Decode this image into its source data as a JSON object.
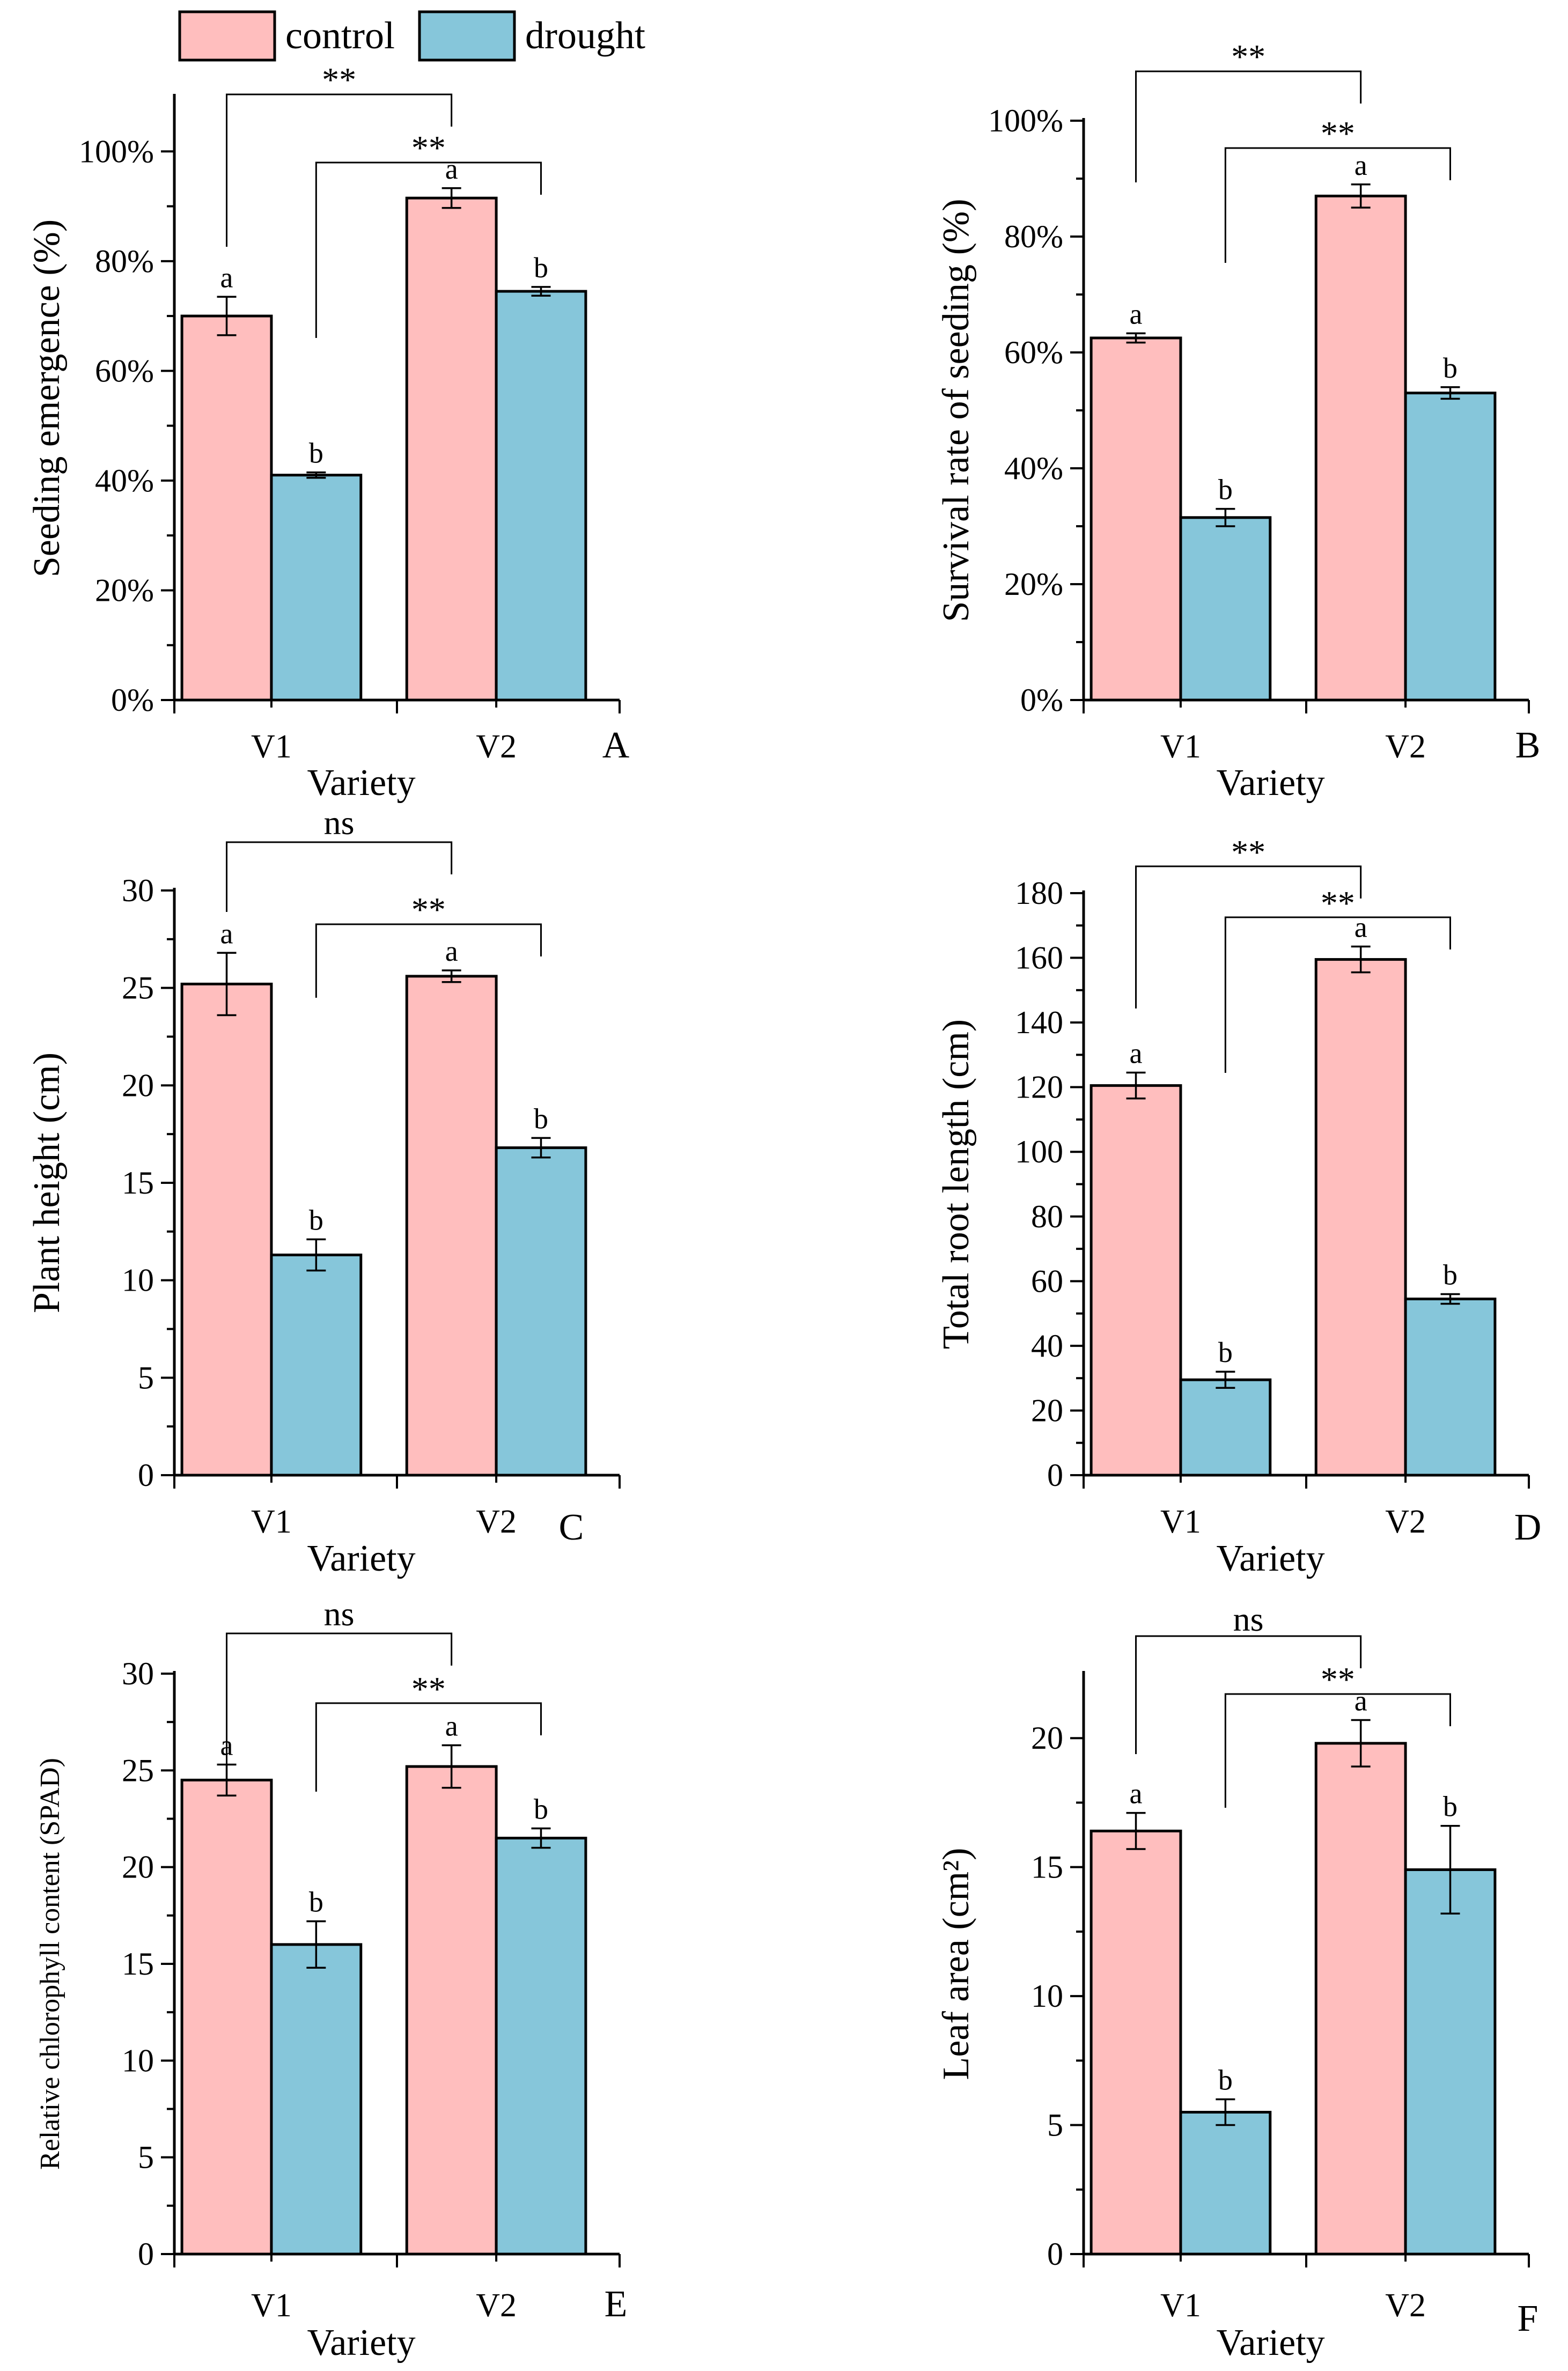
{
  "legend": [
    {
      "name": "control",
      "color": "#FFBEBE"
    },
    {
      "name": "drought",
      "color": "#86C6DA"
    }
  ],
  "chart_data": [
    {
      "id": "A",
      "type": "bar",
      "panel_label": "A",
      "ylabel": "Seeding emergence (%)",
      "xlabel": "Variety",
      "categories": [
        "V1",
        "V2"
      ],
      "ylim": [
        0,
        110
      ],
      "yticks": [
        0,
        20,
        40,
        60,
        80,
        100
      ],
      "ytick_labels": [
        "0%",
        "20%",
        "40%",
        "60%",
        "80%",
        "100%"
      ],
      "series": [
        {
          "name": "control",
          "values": [
            70.0,
            91.5
          ],
          "errors": [
            3.5,
            1.8
          ],
          "letters": [
            "a",
            "a"
          ]
        },
        {
          "name": "drought",
          "values": [
            41.0,
            74.5
          ],
          "errors": [
            0.5,
            0.8
          ],
          "letters": [
            "b",
            "b"
          ]
        }
      ],
      "comparisons": [
        {
          "text": "**",
          "from": "V1-control",
          "to": "V2-control"
        },
        {
          "text": "**",
          "from": "V1-drought",
          "to": "V2-drought"
        }
      ]
    },
    {
      "id": "B",
      "type": "bar",
      "panel_label": "B",
      "ylabel": "Survival rate of seeding (%)",
      "xlabel": "Variety",
      "categories": [
        "V1",
        "V2"
      ],
      "ylim": [
        0,
        100
      ],
      "yticks": [
        0,
        20,
        40,
        60,
        80,
        100
      ],
      "ytick_labels": [
        "0%",
        "20%",
        "40%",
        "60%",
        "80%",
        "100%"
      ],
      "series": [
        {
          "name": "control",
          "values": [
            62.5,
            87.0
          ],
          "errors": [
            0.8,
            2.0
          ],
          "letters": [
            "a",
            "a"
          ]
        },
        {
          "name": "drought",
          "values": [
            31.5,
            53.0
          ],
          "errors": [
            1.5,
            1.0
          ],
          "letters": [
            "b",
            "b"
          ]
        }
      ],
      "comparisons": [
        {
          "text": "**",
          "from": "V1-control",
          "to": "V2-control"
        },
        {
          "text": "**",
          "from": "V1-drought",
          "to": "V2-drought"
        }
      ]
    },
    {
      "id": "C",
      "type": "bar",
      "panel_label": "C",
      "ylabel": "Plant height  (cm)",
      "xlabel": "Variety",
      "categories": [
        "V1",
        "V2"
      ],
      "ylim": [
        0,
        30
      ],
      "yticks": [
        0,
        5,
        10,
        15,
        20,
        25,
        30
      ],
      "ytick_labels": [
        "0",
        "5",
        "10",
        "15",
        "20",
        "25",
        "30"
      ],
      "series": [
        {
          "name": "control",
          "values": [
            25.2,
            25.6
          ],
          "errors": [
            1.6,
            0.3
          ],
          "letters": [
            "a",
            "a"
          ]
        },
        {
          "name": "drought",
          "values": [
            11.3,
            16.8
          ],
          "errors": [
            0.8,
            0.5
          ],
          "letters": [
            "b",
            "b"
          ]
        }
      ],
      "comparisons": [
        {
          "text": "ns",
          "from": "V1-control",
          "to": "V2-control"
        },
        {
          "text": "**",
          "from": "V1-drought",
          "to": "V2-drought"
        }
      ]
    },
    {
      "id": "D",
      "type": "bar",
      "panel_label": "D",
      "ylabel": "Total root length  (cm)",
      "xlabel": "Variety",
      "categories": [
        "V1",
        "V2"
      ],
      "ylim": [
        0,
        180
      ],
      "yticks": [
        0,
        20,
        40,
        60,
        80,
        100,
        120,
        140,
        160,
        180
      ],
      "ytick_labels": [
        "0",
        "20",
        "40",
        "60",
        "80",
        "100",
        "120",
        "140",
        "160",
        "180"
      ],
      "series": [
        {
          "name": "control",
          "values": [
            120.5,
            159.5
          ],
          "errors": [
            4.0,
            4.0
          ],
          "letters": [
            "a",
            "a"
          ]
        },
        {
          "name": "drought",
          "values": [
            29.5,
            54.5
          ],
          "errors": [
            2.5,
            1.5
          ],
          "letters": [
            "b",
            "b"
          ]
        }
      ],
      "comparisons": [
        {
          "text": "**",
          "from": "V1-control",
          "to": "V2-control"
        },
        {
          "text": "**",
          "from": "V1-drought",
          "to": "V2-drought"
        }
      ]
    },
    {
      "id": "E",
      "type": "bar",
      "panel_label": "E",
      "ylabel": "Relative chlorophyll content  (SPAD)",
      "xlabel": "Variety",
      "categories": [
        "V1",
        "V2"
      ],
      "ylim": [
        0,
        30
      ],
      "yticks": [
        0,
        5,
        10,
        15,
        20,
        25,
        30
      ],
      "ytick_labels": [
        "0",
        "5",
        "10",
        "15",
        "20",
        "25",
        "30"
      ],
      "series": [
        {
          "name": "control",
          "values": [
            24.5,
            25.2
          ],
          "errors": [
            0.8,
            1.1
          ],
          "letters": [
            "a",
            "a"
          ]
        },
        {
          "name": "drought",
          "values": [
            16.0,
            21.5
          ],
          "errors": [
            1.2,
            0.5
          ],
          "letters": [
            "b",
            "b"
          ]
        }
      ],
      "comparisons": [
        {
          "text": "ns",
          "from": "V1-control",
          "to": "V2-control"
        },
        {
          "text": "**",
          "from": "V1-drought",
          "to": "V2-drought"
        }
      ]
    },
    {
      "id": "F",
      "type": "bar",
      "panel_label": "F",
      "ylabel": "Leaf area (cm²)",
      "xlabel": "Variety",
      "categories": [
        "V1",
        "V2"
      ],
      "ylim": [
        0,
        22.5
      ],
      "yticks": [
        0,
        5,
        10,
        15,
        20
      ],
      "ytick_labels": [
        "0",
        "5",
        "10",
        "15",
        "20"
      ],
      "series": [
        {
          "name": "control",
          "values": [
            16.4,
            19.8
          ],
          "errors": [
            0.7,
            0.9
          ],
          "letters": [
            "a",
            "a"
          ]
        },
        {
          "name": "drought",
          "values": [
            5.5,
            14.9
          ],
          "errors": [
            0.5,
            1.7
          ],
          "letters": [
            "b",
            "b"
          ]
        }
      ],
      "comparisons": [
        {
          "text": "ns",
          "from": "V1-control",
          "to": "V2-control"
        },
        {
          "text": "**",
          "from": "V1-drought",
          "to": "V2-drought"
        }
      ]
    }
  ]
}
